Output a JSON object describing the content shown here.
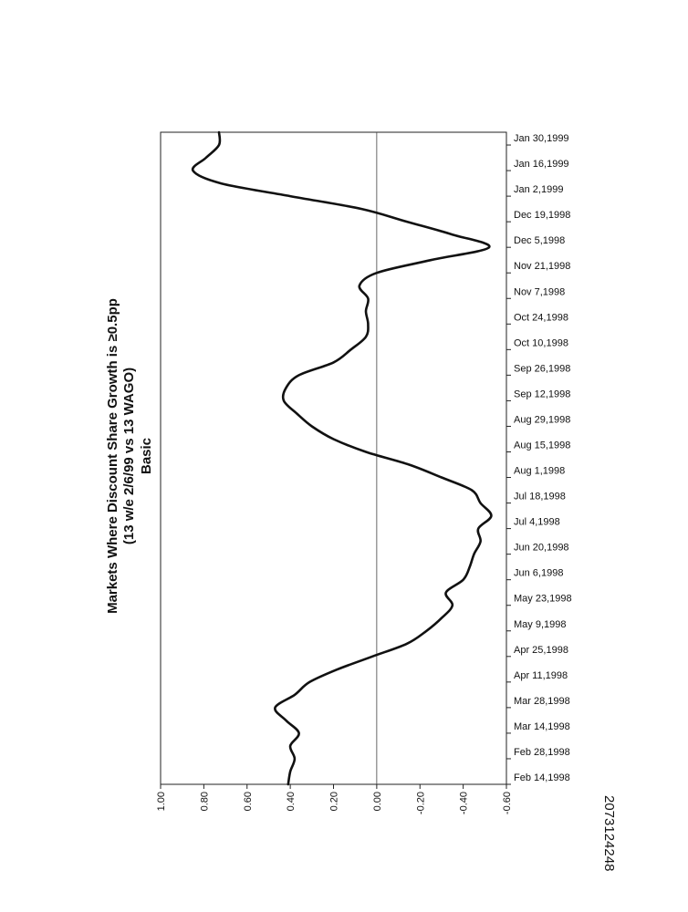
{
  "document_id": "2073124248",
  "chart_data": {
    "type": "line",
    "title": "Markets Where Discount Share Growth is ≥0.5pp",
    "subtitle_1": "(13 w/e 2/6/99 vs 13 WAGO)",
    "subtitle_2": "Basic",
    "xlabel": "",
    "ylabel": "",
    "ylim": [
      -0.6,
      1.0
    ],
    "y_ticks": [
      "1.00",
      "0.80",
      "0.60",
      "0.40",
      "0.20",
      "0.00",
      "-0.20",
      "-0.40",
      "-0.60"
    ],
    "y_tick_values": [
      1.0,
      0.8,
      0.6,
      0.4,
      0.2,
      0.0,
      -0.2,
      -0.4,
      -0.6
    ],
    "x_ticks": [
      "Feb 14,1998",
      "Feb 28,1998",
      "Mar 14,1998",
      "Mar 28,1998",
      "Apr 11,1998",
      "Apr 25,1998",
      "May 9,1998",
      "May 23,1998",
      "Jun 6,1998",
      "Jun 20,1998",
      "Jul 4,1998",
      "Jul 18,1998",
      "Aug 1,1998",
      "Aug 15,1998",
      "Aug 29,1998",
      "Sep 12,1998",
      "Sep 26,1998",
      "Oct 10,1998",
      "Oct 24,1998",
      "Nov 7,1998",
      "Nov 21,1998",
      "Dec 5,1998",
      "Dec 19,1998",
      "Jan 2,1999",
      "Jan 16,1999",
      "Jan 30,1999"
    ],
    "reference_line": 0.0,
    "grid": false,
    "legend": "none",
    "series": [
      {
        "x": [
          "1998-02-14",
          "1998-02-21",
          "1998-02-28",
          "1998-03-07",
          "1998-03-14",
          "1998-03-21",
          "1998-03-28",
          "1998-04-04",
          "1998-04-11",
          "1998-04-18",
          "1998-04-25",
          "1998-05-02",
          "1998-05-09",
          "1998-05-16",
          "1998-05-23",
          "1998-05-30",
          "1998-06-06",
          "1998-06-13",
          "1998-06-20",
          "1998-06-27",
          "1998-07-04",
          "1998-07-11",
          "1998-07-18",
          "1998-07-25",
          "1998-08-01",
          "1998-08-08",
          "1998-08-15",
          "1998-08-22",
          "1998-08-29",
          "1998-09-05",
          "1998-09-12",
          "1998-09-19",
          "1998-09-26",
          "1998-10-03",
          "1998-10-10",
          "1998-10-17",
          "1998-10-24",
          "1998-10-31",
          "1998-11-07",
          "1998-11-14",
          "1998-11-21",
          "1998-11-28",
          "1998-12-05",
          "1998-12-12",
          "1998-12-19",
          "1998-12-26",
          "1999-01-02",
          "1999-01-09",
          "1999-01-16",
          "1999-01-23",
          "1999-01-30",
          "1999-02-06"
        ],
        "y": [
          0.41,
          0.4,
          0.38,
          0.4,
          0.36,
          0.42,
          0.47,
          0.38,
          0.31,
          0.18,
          0.02,
          -0.14,
          -0.23,
          -0.3,
          -0.35,
          -0.32,
          -0.4,
          -0.43,
          -0.45,
          -0.48,
          -0.47,
          -0.53,
          -0.48,
          -0.44,
          -0.3,
          -0.15,
          0.05,
          0.2,
          0.3,
          0.37,
          0.43,
          0.42,
          0.36,
          0.2,
          0.12,
          0.05,
          0.04,
          0.05,
          0.04,
          0.08,
          0.0,
          -0.25,
          -0.52,
          -0.35,
          -0.14,
          0.07,
          0.4,
          0.72,
          0.85,
          0.79,
          0.73,
          0.73
        ]
      }
    ]
  }
}
